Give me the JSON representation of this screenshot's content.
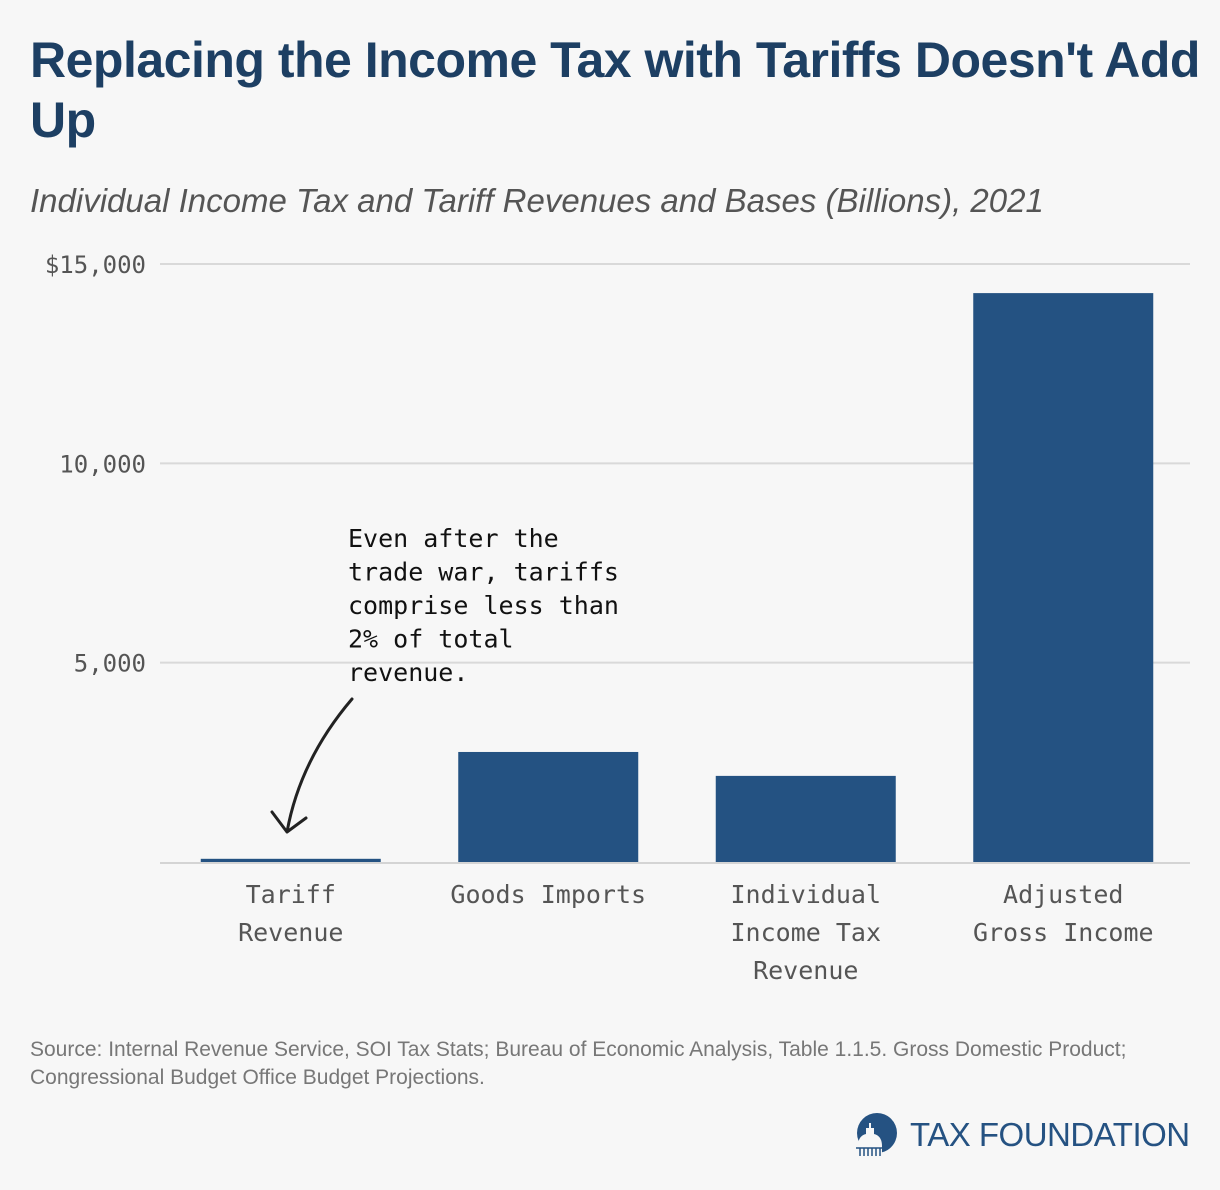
{
  "header": {
    "title": "Replacing the Income Tax with Tariffs Doesn't Add Up",
    "subtitle": "Individual Income Tax and Tariff Revenues and Bases (Billions), 2021"
  },
  "colors": {
    "bar": "#245282",
    "title": "#1d3f63",
    "grid": "#d9d9d9",
    "arrow": "#222222"
  },
  "chart_data": {
    "type": "bar",
    "title": "Replacing the Income Tax with Tariffs Doesn't Add Up",
    "subtitle": "Individual Income Tax and Tariff Revenues and Bases (Billions), 2021",
    "categories": [
      "Tariff Revenue",
      "Goods Imports",
      "Individual Income Tax Revenue",
      "Adjusted Gross Income"
    ],
    "category_lines": [
      [
        "Tariff",
        "Revenue"
      ],
      [
        "Goods Imports"
      ],
      [
        "Individual",
        "Income Tax",
        "Revenue"
      ],
      [
        "Adjusted",
        "Gross Income"
      ]
    ],
    "values": [
      80,
      2760,
      2160,
      14270
    ],
    "xlabel": "",
    "ylabel": "",
    "ylim": [
      0,
      15000
    ],
    "yticks": [
      {
        "value": 5000,
        "label": "5,000"
      },
      {
        "value": 10000,
        "label": "10,000"
      },
      {
        "value": 15000,
        "label": "$15,000"
      }
    ],
    "grid": true,
    "legend": "none",
    "annotation": {
      "lines": [
        "Even after the",
        "trade war, tariffs",
        "comprise less than",
        "2% of total",
        "revenue."
      ],
      "points_to": "Tariff Revenue"
    }
  },
  "footer": {
    "source": "Source: Internal Revenue Service, SOI Tax Stats; Bureau of Economic Analysis, Table 1.1.5. Gross Domestic Product; Congressional Budget Office Budget Projections.",
    "logo_text": "TAX FOUNDATION"
  }
}
